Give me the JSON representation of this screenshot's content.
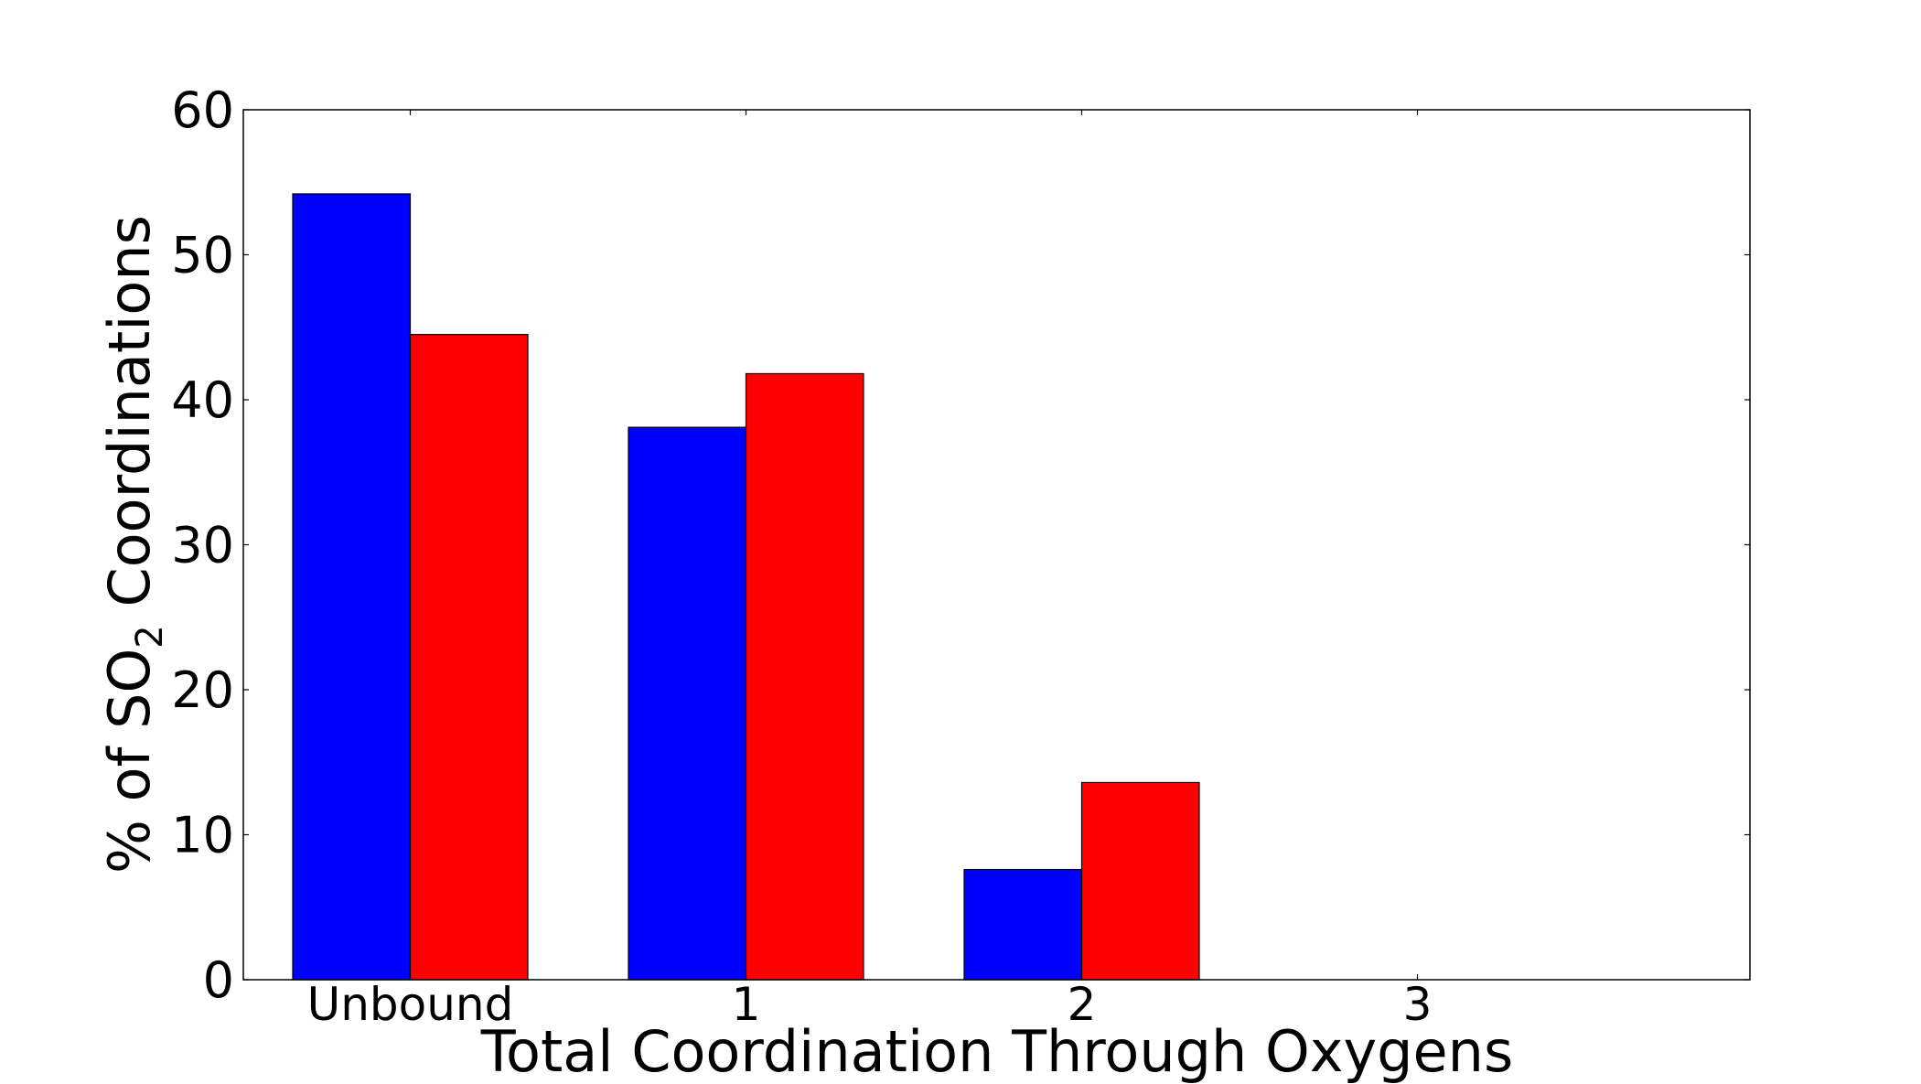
{
  "chart_data": {
    "type": "bar",
    "categories": [
      "Unbound",
      "1",
      "2",
      "3"
    ],
    "series": [
      {
        "values": [
          54.2,
          38.1,
          7.6,
          0
        ],
        "color": "#0000ff"
      },
      {
        "values": [
          44.5,
          41.8,
          13.6,
          0
        ],
        "color": "#ff0000"
      }
    ],
    "xlabel": "Total Coordination Through Oxygens",
    "ylabel_pre": "% of SO",
    "ylabel_sub": "2",
    "ylabel_post": " Coordinations",
    "ylim": [
      0,
      60
    ],
    "yticks": [
      0,
      10,
      20,
      30,
      40,
      50,
      60
    ],
    "ytick_labels": [
      "0",
      "10",
      "20",
      "30",
      "40",
      "50",
      "60"
    ],
    "grid": false,
    "legend": "none"
  }
}
